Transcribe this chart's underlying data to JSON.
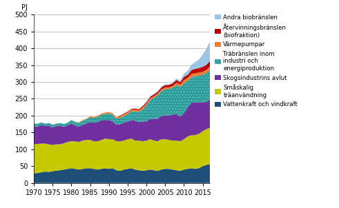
{
  "years": [
    1970,
    1971,
    1972,
    1973,
    1974,
    1975,
    1976,
    1977,
    1978,
    1979,
    1980,
    1981,
    1982,
    1983,
    1984,
    1985,
    1986,
    1987,
    1988,
    1989,
    1990,
    1991,
    1992,
    1993,
    1994,
    1995,
    1996,
    1997,
    1998,
    1999,
    2000,
    2001,
    2002,
    2003,
    2004,
    2005,
    2006,
    2007,
    2008,
    2009,
    2010,
    2011,
    2012,
    2013,
    2014,
    2015,
    2016,
    2017
  ],
  "vattenkraft": [
    28,
    30,
    32,
    34,
    33,
    35,
    37,
    38,
    40,
    42,
    44,
    42,
    40,
    42,
    44,
    44,
    42,
    40,
    42,
    44,
    42,
    44,
    38,
    36,
    40,
    42,
    44,
    40,
    38,
    36,
    38,
    40,
    38,
    36,
    40,
    42,
    42,
    40,
    38,
    36,
    40,
    42,
    44,
    42,
    44,
    50,
    54,
    56
  ],
  "smaskalig": [
    88,
    86,
    85,
    83,
    82,
    78,
    78,
    77,
    78,
    80,
    80,
    82,
    82,
    84,
    84,
    84,
    82,
    84,
    86,
    88,
    88,
    86,
    86,
    88,
    86,
    88,
    88,
    86,
    88,
    88,
    88,
    90,
    88,
    88,
    90,
    88,
    86,
    86,
    88,
    88,
    90,
    96,
    98,
    100,
    102,
    104,
    106,
    108
  ],
  "skogsindustri": [
    52,
    52,
    55,
    53,
    55,
    52,
    55,
    55,
    49,
    49,
    53,
    47,
    45,
    47,
    49,
    53,
    55,
    57,
    59,
    55,
    57,
    53,
    49,
    51,
    53,
    53,
    55,
    59,
    55,
    59,
    57,
    61,
    65,
    67,
    69,
    71,
    73,
    77,
    79,
    73,
    77,
    87,
    97,
    97,
    93,
    85,
    81,
    85
  ],
  "trabranslen": [
    8,
    8,
    8,
    6,
    8,
    8,
    6,
    8,
    8,
    8,
    10,
    10,
    12,
    12,
    12,
    14,
    14,
    16,
    16,
    18,
    20,
    20,
    18,
    18,
    20,
    22,
    26,
    28,
    30,
    36,
    48,
    56,
    62,
    70,
    74,
    78,
    78,
    80,
    86,
    88,
    90,
    78,
    76,
    78,
    80,
    82,
    86,
    88
  ],
  "varmepumpar": [
    0,
    0,
    0,
    0,
    0,
    0,
    0,
    0,
    0,
    0,
    0,
    1,
    1,
    2,
    2,
    3,
    3,
    3,
    3,
    4,
    4,
    4,
    4,
    5,
    5,
    5,
    5,
    5,
    5,
    5,
    5,
    5,
    5,
    5,
    5,
    5,
    5,
    5,
    7,
    7,
    9,
    9,
    9,
    9,
    9,
    9,
    9,
    9
  ],
  "atervinning": [
    0,
    0,
    0,
    0,
    0,
    0,
    0,
    0,
    0,
    0,
    0,
    0,
    0,
    0,
    0,
    0,
    0,
    0,
    0,
    0,
    0,
    0,
    0,
    2,
    2,
    2,
    2,
    3,
    3,
    4,
    4,
    4,
    5,
    5,
    6,
    7,
    7,
    8,
    8,
    7,
    9,
    9,
    11,
    13,
    13,
    15,
    15,
    17
  ],
  "andra_bio": [
    0,
    0,
    0,
    0,
    0,
    0,
    0,
    0,
    0,
    0,
    0,
    0,
    0,
    0,
    0,
    0,
    0,
    0,
    0,
    0,
    0,
    0,
    0,
    0,
    0,
    0,
    0,
    0,
    1,
    1,
    2,
    2,
    2,
    2,
    2,
    2,
    2,
    2,
    4,
    5,
    9,
    12,
    16,
    20,
    26,
    36,
    48,
    58
  ],
  "colors": {
    "vattenkraft": "#1f4e79",
    "smaskalig": "#c5c900",
    "skogsindustri": "#7030a0",
    "trabranslen": "#2e9b9b",
    "varmepumpar": "#ed7d31",
    "atervinning": "#c00000",
    "andra_bio": "#9dc3e6"
  },
  "legend_labels": [
    "Andra biobränslen",
    "Återvinningsbränslen\n(biofraktion)",
    "Värmepumpar",
    "Träbränslen inom\nindustri och\nenergiproduktion",
    "Skogsindustrins avlut",
    "Småskalig\nträanvändning",
    "Vattenkraft och vindkraft"
  ],
  "legend_colors_order": [
    "andra_bio",
    "atervinning",
    "varmepumpar",
    "trabranslen",
    "skogsindustri",
    "smaskalig",
    "vattenkraft"
  ],
  "ylabel": "PJ",
  "ylim": [
    0,
    500
  ],
  "yticks": [
    0,
    50,
    100,
    150,
    200,
    250,
    300,
    350,
    400,
    450,
    500
  ],
  "xticks": [
    1970,
    1975,
    1980,
    1985,
    1990,
    1995,
    2000,
    2005,
    2010,
    2015
  ],
  "figwidth": 4.91,
  "figheight": 3.02,
  "dpi": 100
}
